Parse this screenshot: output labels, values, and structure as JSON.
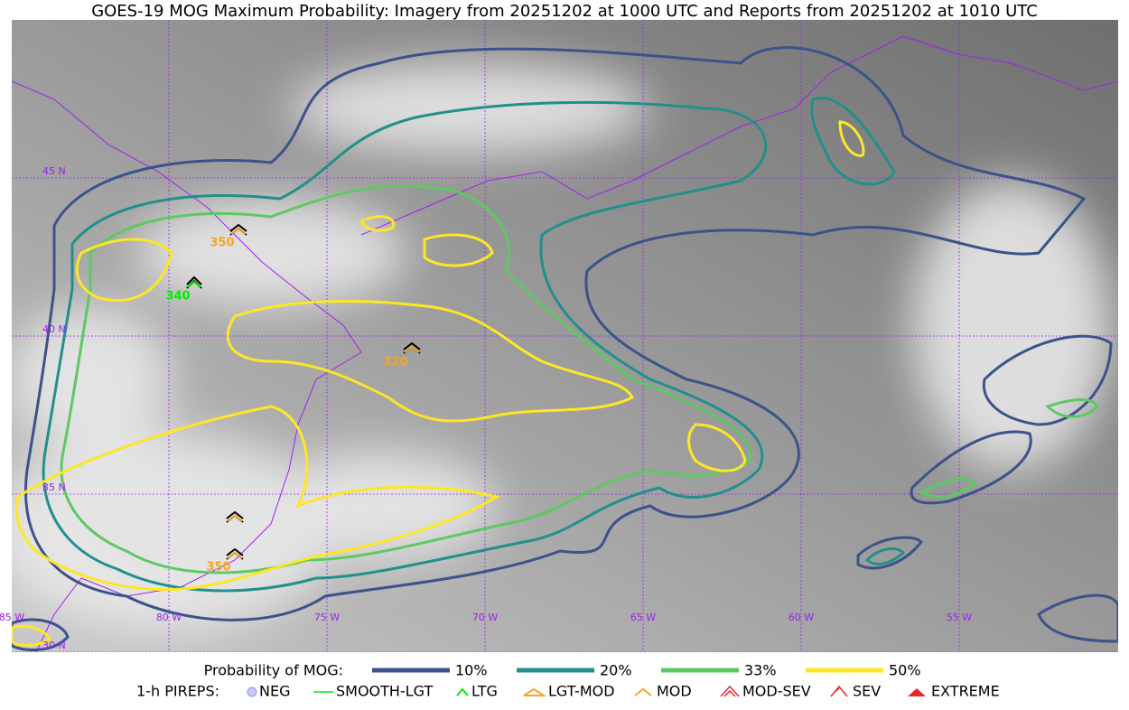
{
  "title": "GOES-19 MOG Maximum Probability: Imagery from 20251202 at 1000 UTC and Reports from 20251202 at 1010 UTC",
  "map": {
    "lat_labels": [
      "45 N",
      "40 N",
      "35 N",
      "30 N"
    ],
    "lon_labels": [
      "85 W",
      "80 W",
      "75 W",
      "70 W",
      "65 W",
      "60 W",
      "55 W"
    ],
    "reports": [
      {
        "label": 350
      },
      {
        "label": 340
      },
      {
        "label": 320
      },
      {
        "label": 350
      }
    ]
  },
  "legend": {
    "probability": {
      "title": "Probability of MOG:",
      "items": [
        "10%",
        "20%",
        "33%",
        "50%"
      ]
    },
    "pireps": {
      "title": "1-h PIREPS:",
      "items": [
        "NEG",
        "SMOOTH-LGT",
        "LTG",
        "LGT-MOD",
        "MOD",
        "MOD-SEV",
        "SEV",
        "EXTREME"
      ]
    }
  }
}
